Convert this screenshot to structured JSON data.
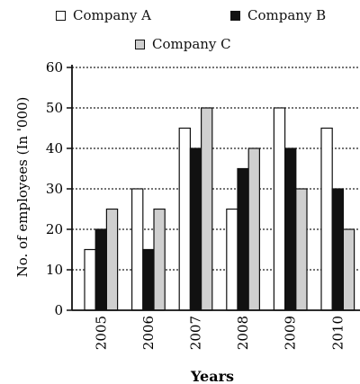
{
  "chart_data": {
    "type": "bar",
    "categories": [
      "2005",
      "2006",
      "2007",
      "2008",
      "2009",
      "2010"
    ],
    "series": [
      {
        "name": "Company A",
        "values": [
          15,
          30,
          45,
          25,
          50,
          45
        ],
        "color": "#ffffff"
      },
      {
        "name": "Company B",
        "values": [
          20,
          15,
          40,
          35,
          40,
          30
        ],
        "color": "#111111"
      },
      {
        "name": "Company C",
        "values": [
          25,
          25,
          50,
          40,
          30,
          20
        ],
        "color": "#cfcfcf"
      }
    ],
    "xlabel": "Years",
    "ylabel": "No. of employees (In '000)",
    "ylim": [
      0,
      60
    ],
    "yticks": [
      0,
      10,
      20,
      30,
      40,
      50,
      60
    ],
    "grid": true,
    "legend_position": "top"
  }
}
